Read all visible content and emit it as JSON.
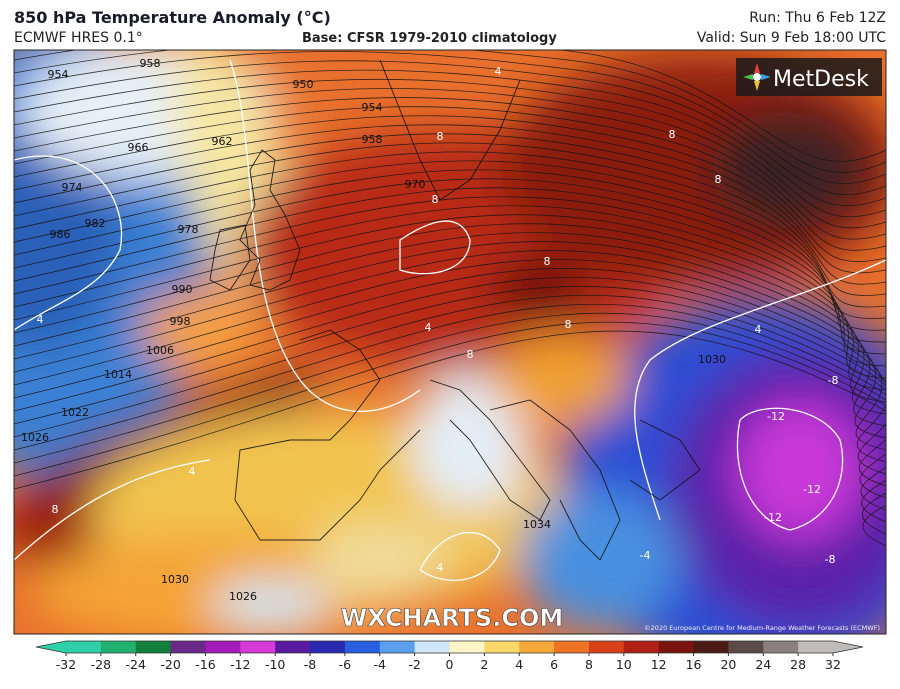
{
  "header": {
    "title": "850 hPa Temperature Anomaly (°C)",
    "model": "ECMWF HRES 0.1°",
    "base": "Base: CFSR 1979-2010 climatology",
    "run": "Run: Thu 6 Feb 12Z",
    "valid": "Valid: Sun 9 Feb 18:00 UTC"
  },
  "logo": "MetDesk",
  "watermark": "WXCHARTS.COM",
  "credit": "©2020 European Centre for Medium-Range Weather Forecasts (ECMWF)",
  "map": {
    "isobar_labels": [
      954,
      958,
      950,
      962,
      966,
      974,
      982,
      986,
      978,
      990,
      998,
      1006,
      1014,
      1022,
      1026,
      1030,
      1026,
      1034,
      954,
      958,
      970,
      1030
    ],
    "anomaly_labels": [
      8,
      8,
      8,
      8,
      8,
      8,
      8,
      4,
      4,
      4,
      -8,
      -12,
      -12,
      -12,
      4,
      8,
      -4,
      4,
      4,
      -8
    ]
  },
  "colorbar": {
    "ticks": [
      -32,
      -28,
      -24,
      -20,
      -16,
      -12,
      -10,
      -8,
      -6,
      -4,
      -2,
      0,
      2,
      4,
      6,
      8,
      10,
      12,
      16,
      20,
      24,
      28,
      32
    ],
    "colors": [
      "#2fd0a8",
      "#20b070",
      "#12803c",
      "#6a2a88",
      "#a21cb8",
      "#d63ad8",
      "#5a1aa0",
      "#2a2ab0",
      "#2a5ee0",
      "#5aa0ee",
      "#cfe6f6",
      "#fff6c8",
      "#f8d868",
      "#f4a83a",
      "#ec7424",
      "#d8401a",
      "#b02016",
      "#7a1410",
      "#4a1a14",
      "#5a4a48",
      "#8a8080",
      "#c0bcbc"
    ]
  }
}
